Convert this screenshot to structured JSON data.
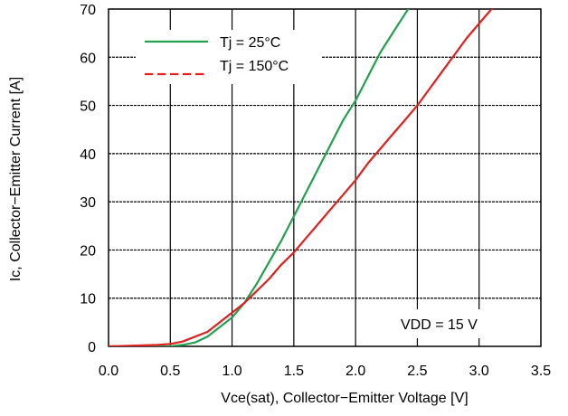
{
  "chart_data": {
    "type": "line",
    "xlabel": "Vce(sat), Collector−Emitter Voltage [V]",
    "ylabel": "Ic, Collector−Emitter Current [A]",
    "xlim": [
      0,
      3.5
    ],
    "ylim": [
      0,
      70
    ],
    "xticks": [
      "0.0",
      "0.5",
      "1.0",
      "1.5",
      "2.0",
      "2.5",
      "3.0",
      "3.5"
    ],
    "yticks": [
      "0",
      "10",
      "20",
      "30",
      "40",
      "50",
      "60",
      "70"
    ],
    "grid": true,
    "legend_position": "top-left",
    "annotation": "VDD = 15 V",
    "series": [
      {
        "name": "Tj = 25°C",
        "color": "#22a050",
        "line_style": "solid",
        "x": [
          0.0,
          0.5,
          0.6,
          0.7,
          0.8,
          0.9,
          1.0,
          1.1,
          1.2,
          1.3,
          1.4,
          1.5,
          1.6,
          1.7,
          1.8,
          1.9,
          2.0,
          2.1,
          2.2,
          2.3,
          2.4,
          2.45
        ],
        "y": [
          0,
          0,
          0.3,
          0.8,
          2.0,
          4.0,
          6.0,
          9.0,
          13.0,
          17.5,
          22.0,
          27.0,
          32.0,
          37.0,
          42.0,
          47.0,
          51.0,
          56.0,
          61.0,
          65.0,
          69.0,
          71.0
        ]
      },
      {
        "name": "Tj = 150°C",
        "color": "#e02020",
        "line_style": "dashed",
        "x": [
          0.0,
          0.4,
          0.5,
          0.6,
          0.7,
          0.8,
          0.9,
          1.0,
          1.1,
          1.2,
          1.3,
          1.4,
          1.5,
          1.6,
          1.7,
          1.8,
          1.9,
          2.0,
          2.1,
          2.2,
          2.3,
          2.4,
          2.5,
          2.6,
          2.7,
          2.8,
          2.9,
          3.0,
          3.1,
          3.15
        ],
        "y": [
          0,
          0.3,
          0.5,
          1.0,
          2.0,
          3.0,
          5.0,
          7.0,
          9.0,
          11.5,
          14.0,
          17.0,
          19.5,
          22.5,
          25.5,
          28.5,
          31.5,
          34.5,
          38.0,
          41.0,
          44.0,
          47.0,
          50.0,
          53.5,
          57.0,
          60.5,
          64.0,
          67.0,
          70.0,
          71.0
        ]
      }
    ]
  }
}
